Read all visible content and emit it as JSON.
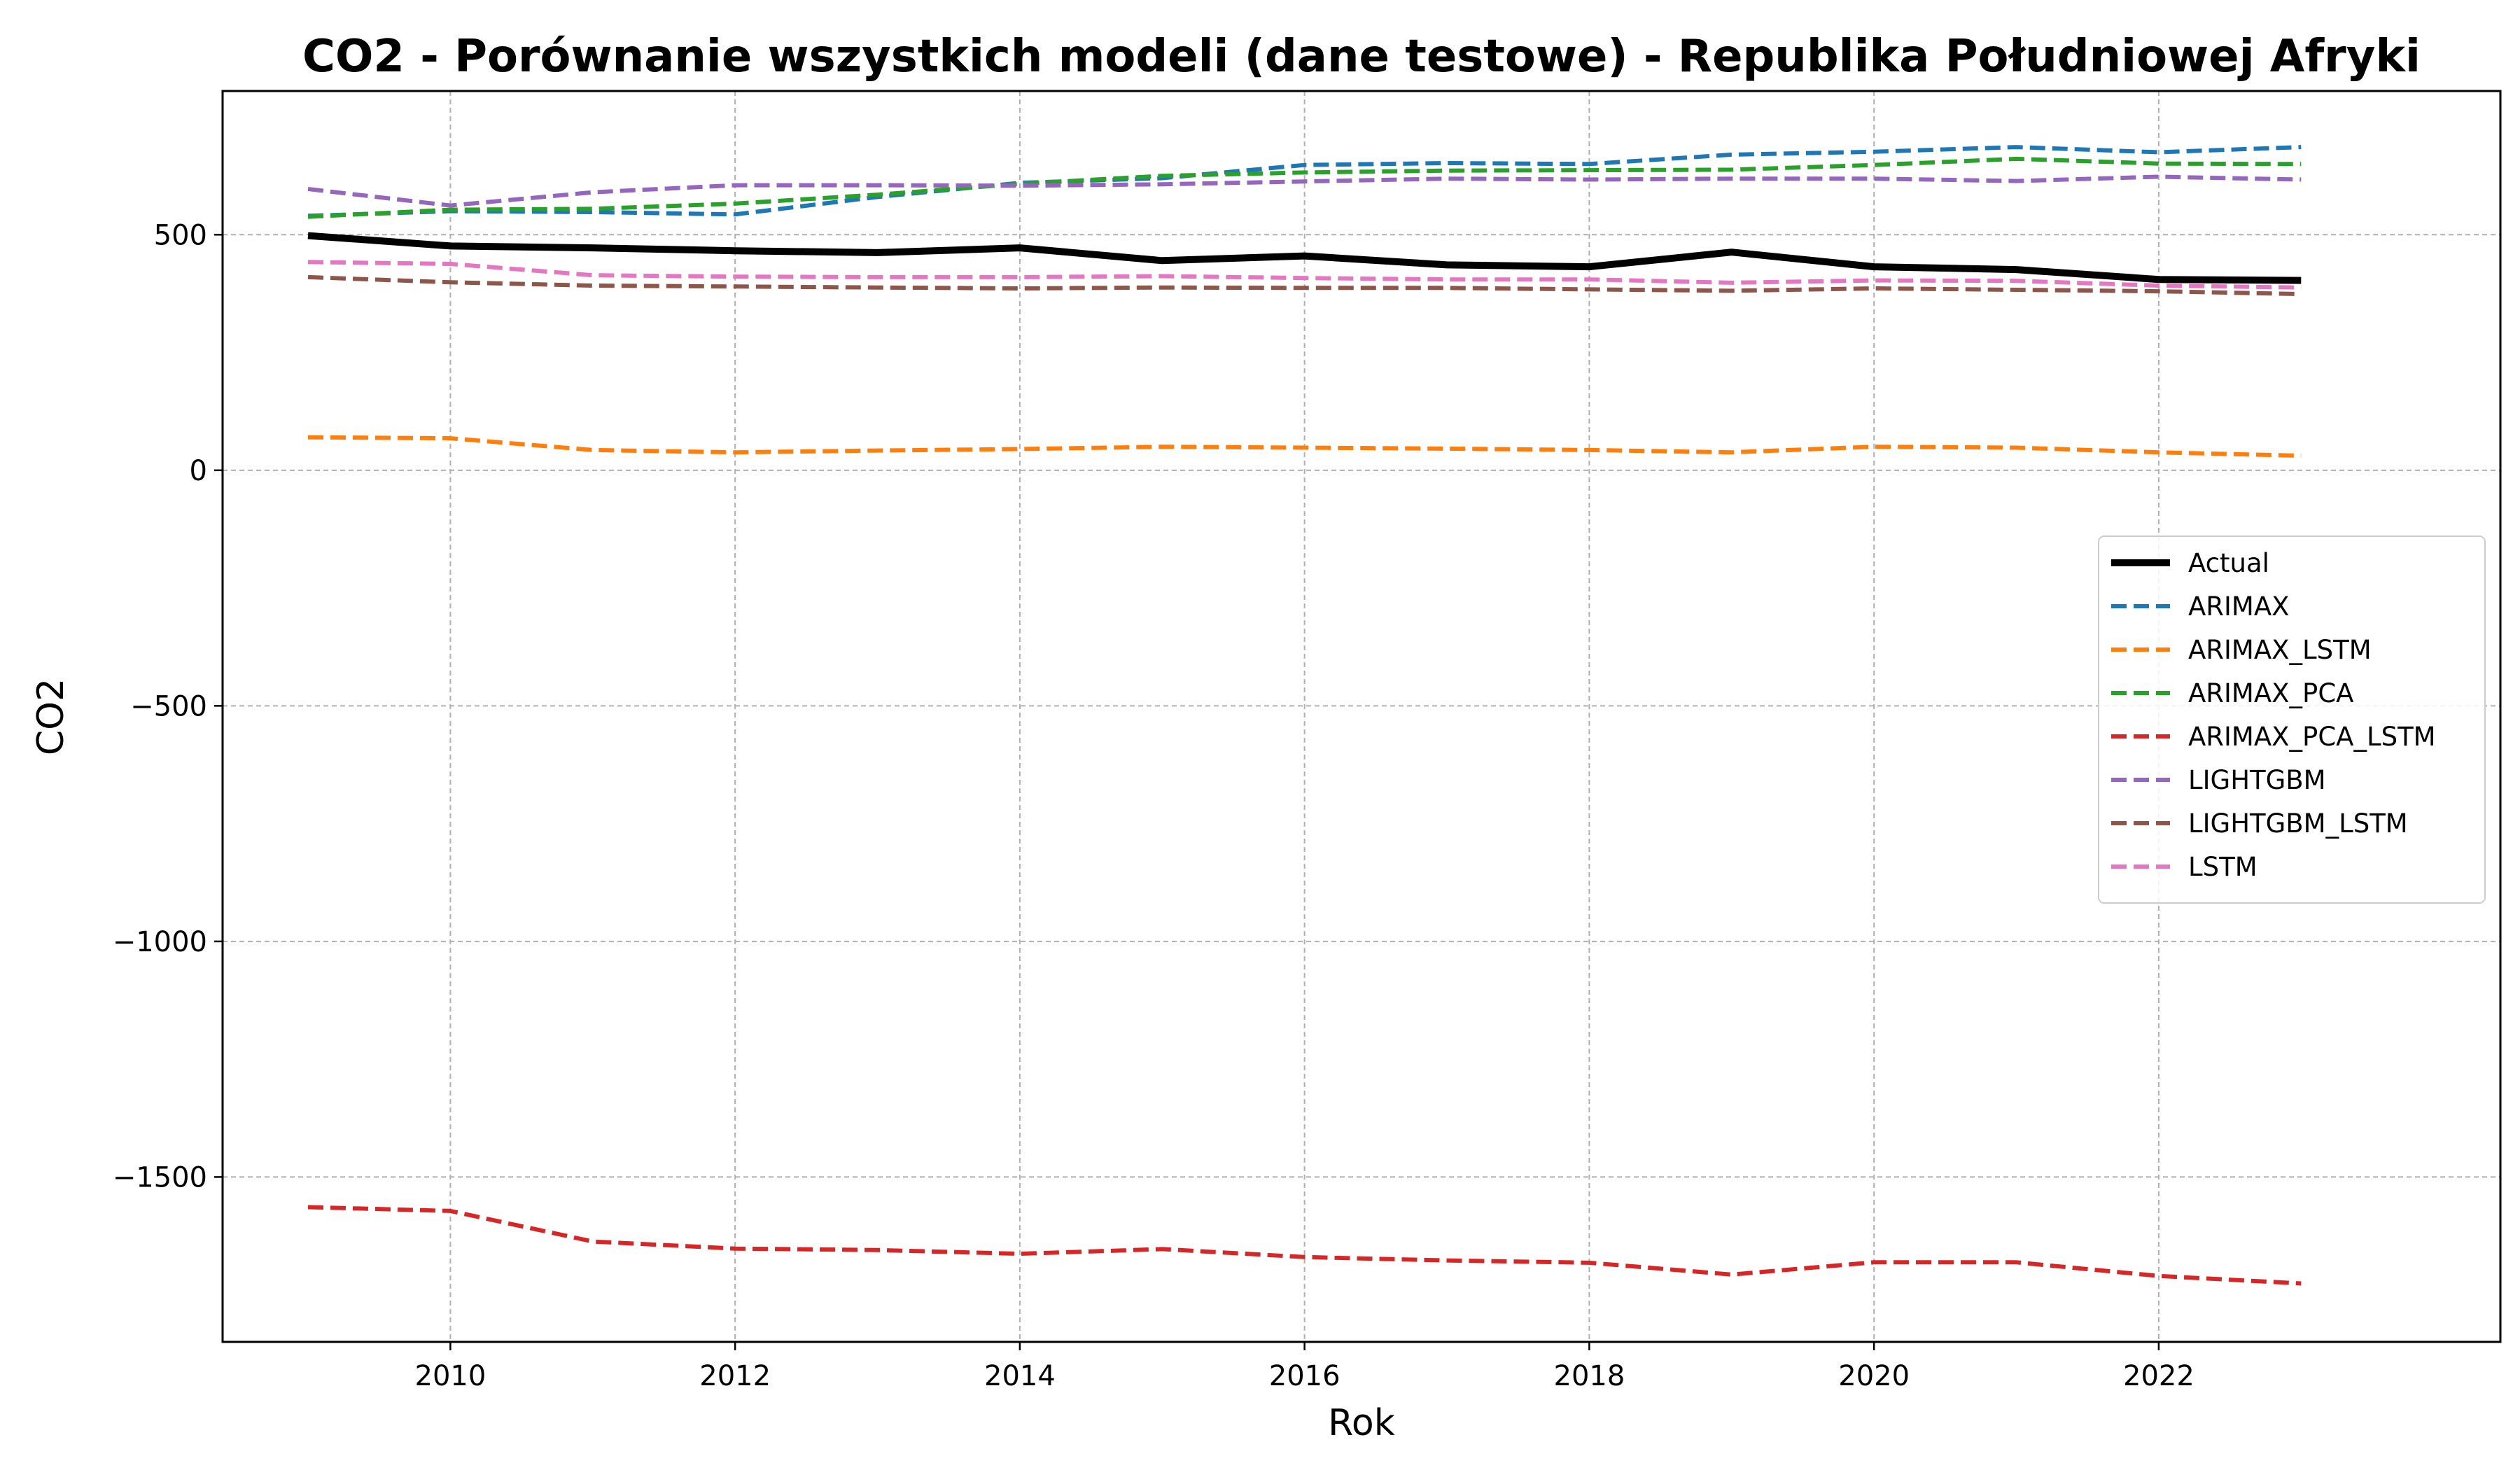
{
  "chart_data": {
    "type": "line",
    "title": "CO2 - Porównanie wszystkich modeli (dane testowe) - Republika Południowej Afryki",
    "xlabel": "Rok",
    "ylabel": "CO2",
    "xlim": [
      2008.4,
      2024.4
    ],
    "ylim": [
      -1850,
      805
    ],
    "xticks": [
      2010,
      2012,
      2014,
      2016,
      2018,
      2020,
      2022
    ],
    "yticks": [
      -1500,
      -1000,
      -500,
      0,
      500
    ],
    "ytick_labels": [
      "−1500",
      "−1000",
      "−500",
      "0",
      "500"
    ],
    "grid": true,
    "legend_position": "center-right",
    "x": [
      2009,
      2010,
      2011,
      2012,
      2013,
      2014,
      2015,
      2016,
      2017,
      2018,
      2019,
      2020,
      2021,
      2022,
      2023
    ],
    "series": [
      {
        "name": "Actual",
        "color": "#000000",
        "style": "solid",
        "values": [
          498,
          476,
          472,
          466,
          462,
          472,
          445,
          455,
          436,
          432,
          463,
          432,
          426,
          405,
          403
        ]
      },
      {
        "name": "ARIMAX",
        "color": "#1f77b4",
        "style": "dashed",
        "values": [
          540,
          550,
          548,
          543,
          580,
          610,
          620,
          648,
          652,
          650,
          670,
          676,
          686,
          675,
          686
        ]
      },
      {
        "name": "ARIMAX_LSTM",
        "color": "#ff7f0e",
        "style": "dashed",
        "values": [
          70,
          68,
          43,
          38,
          42,
          45,
          50,
          48,
          46,
          43,
          38,
          50,
          48,
          38,
          31
        ]
      },
      {
        "name": "ARIMAX_PCA",
        "color": "#2ca02c",
        "style": "dashed",
        "values": [
          538,
          553,
          555,
          566,
          585,
          608,
          625,
          632,
          636,
          637,
          638,
          648,
          661,
          651,
          650
        ]
      },
      {
        "name": "ARIMAX_PCA_LSTM",
        "color": "#d62728",
        "style": "dashed",
        "values": [
          -1564,
          -1572,
          -1637,
          -1652,
          -1655,
          -1663,
          -1653,
          -1670,
          -1677,
          -1682,
          -1707,
          -1681,
          -1681,
          -1710,
          -1726
        ]
      },
      {
        "name": "LIGHTGBM",
        "color": "#9467bd",
        "style": "dashed",
        "values": [
          597,
          562,
          590,
          605,
          605,
          604,
          607,
          613,
          619,
          617,
          619,
          619,
          614,
          623,
          617
        ]
      },
      {
        "name": "LIGHTGBM_LSTM",
        "color": "#8c564b",
        "style": "dashed",
        "values": [
          410,
          399,
          392,
          390,
          388,
          386,
          388,
          387,
          387,
          384,
          381,
          386,
          383,
          380,
          374
        ]
      },
      {
        "name": "LSTM",
        "color": "#e377c2",
        "style": "dashed",
        "values": [
          442,
          438,
          414,
          411,
          410,
          410,
          412,
          408,
          405,
          405,
          398,
          403,
          402,
          392,
          388
        ]
      }
    ]
  }
}
